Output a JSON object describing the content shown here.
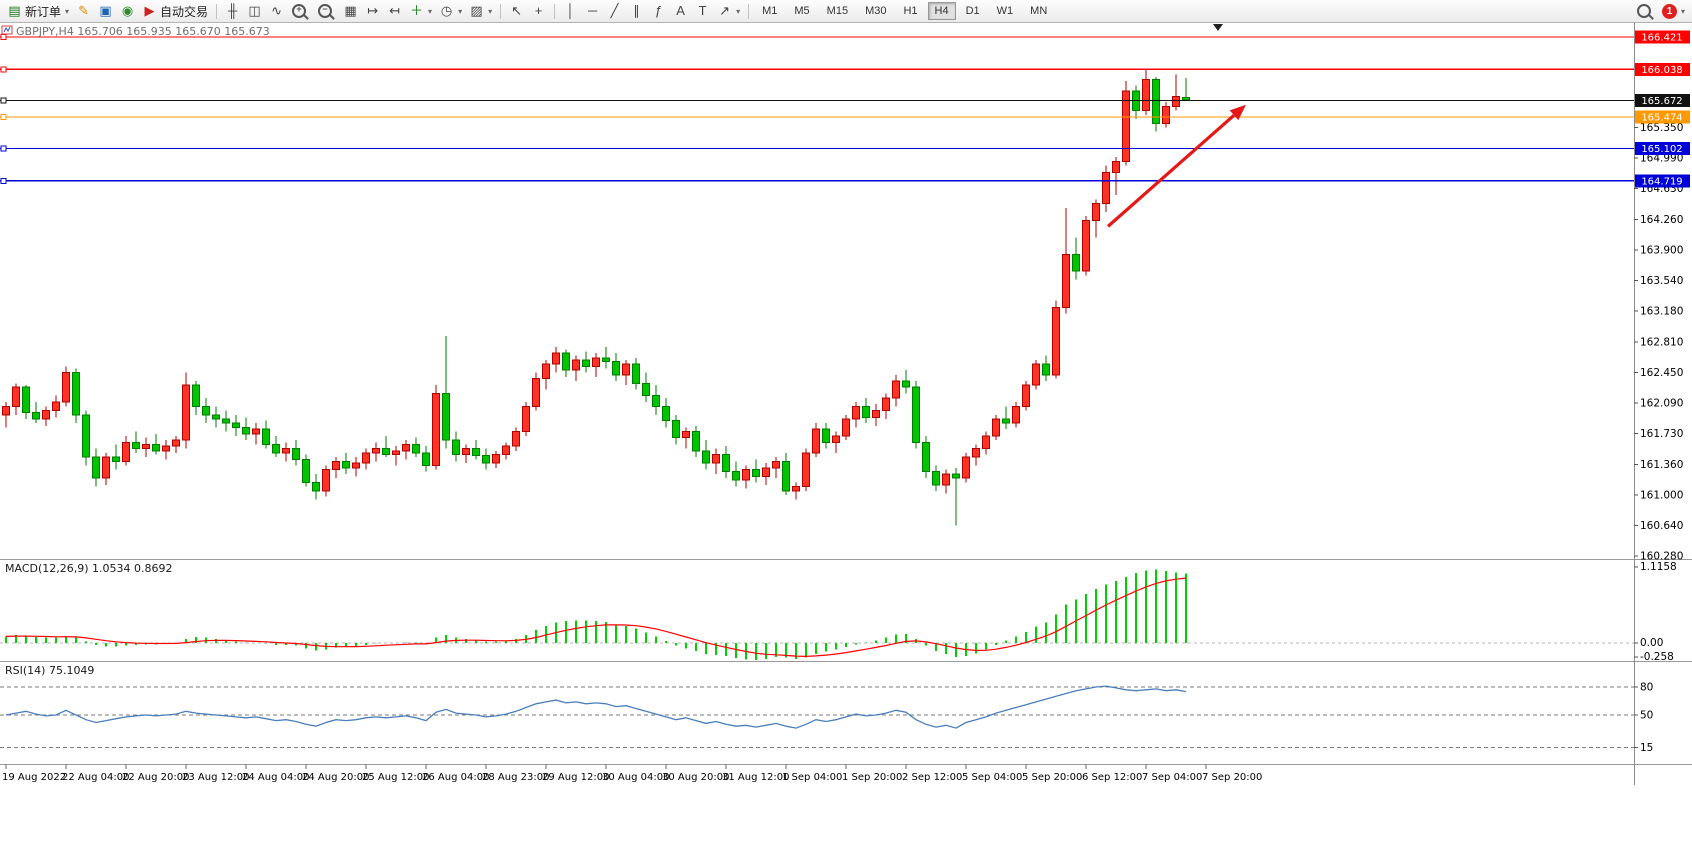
{
  "toolbar": {
    "main_buttons": [
      {
        "name": "new-order",
        "glyph": "▤",
        "glyph_color": "#1a7a1a",
        "label": "新订单",
        "dropdown": "▾"
      },
      {
        "name": "metaeditor",
        "glyph": "✎",
        "glyph_color": "#d89000"
      },
      {
        "name": "terminal",
        "glyph": "▣",
        "glyph_color": "#1e64b4"
      },
      {
        "name": "alerts",
        "glyph": "◉",
        "glyph_color": "#2e8b2e"
      },
      {
        "name": "autotrading",
        "glyph": "▶",
        "glyph_color": "#cc2222",
        "label": "自动交易"
      }
    ],
    "chart_buttons": [
      {
        "name": "bar-chart-mode",
        "glyph": "╫"
      },
      {
        "name": "candlestick-mode",
        "glyph": "◫"
      },
      {
        "name": "line-chart-mode",
        "glyph": "∿"
      },
      {
        "name": "zoom-in",
        "glyph": "+",
        "magnifier": true
      },
      {
        "name": "zoom-out",
        "glyph": "−",
        "magnifier": true
      },
      {
        "name": "tile-windows",
        "glyph": "▦"
      },
      {
        "name": "auto-scroll",
        "glyph": "↦"
      },
      {
        "name": "chart-shift",
        "glyph": "↤"
      },
      {
        "name": "indicators-list",
        "glyph": "＋",
        "glyph_color": "#1a7a1a",
        "dropdown": "▾"
      },
      {
        "name": "periods-list",
        "glyph": "◷",
        "dropdown": "▾"
      },
      {
        "name": "templates",
        "glyph": "▨",
        "dropdown": "▾"
      }
    ],
    "tool_buttons": [
      {
        "name": "cursor",
        "glyph": "↖"
      },
      {
        "name": "crosshair",
        "glyph": "+"
      }
    ],
    "draw_buttons": [
      {
        "name": "vertical-line-tool",
        "glyph": "│"
      },
      {
        "name": "horizontal-line-tool",
        "glyph": "─"
      },
      {
        "name": "trendline-tool",
        "glyph": "╱"
      },
      {
        "name": "channel-tool",
        "glyph": "∥"
      },
      {
        "name": "fibonacci-tool",
        "glyph": "ƒ"
      },
      {
        "name": "text-tool",
        "glyph": "A"
      },
      {
        "name": "label-tool",
        "glyph": "T"
      },
      {
        "name": "arrows-tool",
        "glyph": "↗",
        "dropdown": "▾"
      }
    ],
    "timeframes": {
      "items": [
        "M1",
        "M5",
        "M15",
        "M30",
        "H1",
        "H4",
        "D1",
        "W1",
        "MN"
      ],
      "active": "H4"
    },
    "right_buttons": [
      {
        "name": "search",
        "magnifier": true
      },
      {
        "name": "notifications",
        "badge": "1",
        "dropdown": "▾"
      }
    ]
  },
  "chart": {
    "title": "GBPJPY,H4 165.706 165.935 165.670 165.673",
    "macd_label": "MACD(12,26,9) 1.0534 0.8692",
    "rsi_label": "RSI(14) 75.1049",
    "price_axis_ticks": [
      "165.350",
      "164.990",
      "164.630",
      "164.260",
      "163.900",
      "163.540",
      "163.180",
      "162.810",
      "162.450",
      "162.090",
      "161.730",
      "161.360",
      "161.000",
      "160.640",
      "160.280"
    ],
    "hlines": [
      {
        "price": 166.421,
        "label": "166.421",
        "color": "#ff0000"
      },
      {
        "price": 166.038,
        "label": "166.038",
        "color": "#ff0000"
      },
      {
        "price": 165.672,
        "label": "165.672",
        "color": "#111111"
      },
      {
        "price": 165.474,
        "label": "165.474",
        "color": "#ff9900"
      },
      {
        "price": 165.102,
        "label": "165.102",
        "color": "#0000d8"
      },
      {
        "price": 164.719,
        "label": "164.719",
        "color": "#0000d8"
      }
    ],
    "macd_axis": {
      "max_label": "1.1158",
      "zero_label": "0.00",
      "min_label": "-0.258"
    },
    "rsi_levels": [
      {
        "value": 80,
        "label": "80"
      },
      {
        "value": 50,
        "label": "50"
      },
      {
        "value": 15,
        "label": "15"
      }
    ],
    "arrow": {
      "from_bar": 110.2,
      "from_price": 164.18,
      "to_bar": 124,
      "to_price": 165.62,
      "color": "#e51717"
    },
    "colors": {
      "up_fill": "#ff3226",
      "up_border": "#ae0000",
      "down_fill": "#00c400",
      "down_border": "#007d00",
      "macd_hist": "#00d000",
      "macd_signal": "#ff0000",
      "rsi_line": "#4a7ebb"
    }
  },
  "chart_data": {
    "type": "candlestick",
    "symbol": "GBPJPY",
    "timeframe": "H4",
    "ohlc_current": {
      "open": 165.706,
      "high": 165.935,
      "low": 165.67,
      "close": 165.673
    },
    "ylim": [
      160.255,
      166.587
    ],
    "label_every_bars": 6,
    "time_labels": [
      "19 Aug 2022",
      "22 Aug 04:00",
      "22 Aug 20:00",
      "23 Aug 12:00",
      "24 Aug 04:00",
      "24 Aug 20:00",
      "25 Aug 12:00",
      "26 Aug 04:00",
      "28 Aug 23:00",
      "29 Aug 12:00",
      "30 Aug 04:00",
      "30 Aug 20:00",
      "31 Aug 12:00",
      "1 Sep 04:00",
      "1 Sep 20:00",
      "2 Sep 12:00",
      "5 Sep 04:00",
      "5 Sep 20:00",
      "6 Sep 12:00",
      "7 Sep 04:00",
      "7 Sep 20:00"
    ],
    "candles": [
      [
        161.95,
        162.1,
        161.8,
        162.05
      ],
      [
        162.05,
        162.32,
        161.95,
        162.28
      ],
      [
        162.28,
        162.3,
        161.9,
        161.98
      ],
      [
        161.98,
        162.1,
        161.85,
        161.9
      ],
      [
        161.9,
        162.05,
        161.82,
        162.0
      ],
      [
        162.0,
        162.18,
        161.92,
        162.1
      ],
      [
        162.1,
        162.52,
        162.05,
        162.45
      ],
      [
        162.45,
        162.5,
        161.85,
        161.95
      ],
      [
        161.95,
        162.0,
        161.35,
        161.45
      ],
      [
        161.45,
        161.55,
        161.1,
        161.2
      ],
      [
        161.2,
        161.5,
        161.12,
        161.45
      ],
      [
        161.45,
        161.6,
        161.3,
        161.4
      ],
      [
        161.4,
        161.7,
        161.35,
        161.62
      ],
      [
        161.62,
        161.75,
        161.5,
        161.55
      ],
      [
        161.55,
        161.68,
        161.45,
        161.6
      ],
      [
        161.6,
        161.72,
        161.48,
        161.52
      ],
      [
        161.52,
        161.65,
        161.42,
        161.58
      ],
      [
        161.58,
        161.7,
        161.5,
        161.65
      ],
      [
        161.65,
        162.45,
        161.55,
        162.3
      ],
      [
        162.3,
        162.35,
        161.95,
        162.05
      ],
      [
        162.05,
        162.15,
        161.85,
        161.95
      ],
      [
        161.95,
        162.05,
        161.8,
        161.9
      ],
      [
        161.9,
        162.0,
        161.75,
        161.85
      ],
      [
        161.85,
        161.95,
        161.7,
        161.8
      ],
      [
        161.8,
        161.92,
        161.65,
        161.72
      ],
      [
        161.72,
        161.85,
        161.6,
        161.78
      ],
      [
        161.78,
        161.88,
        161.55,
        161.6
      ],
      [
        161.6,
        161.7,
        161.45,
        161.5
      ],
      [
        161.5,
        161.62,
        161.4,
        161.55
      ],
      [
        161.55,
        161.65,
        161.35,
        161.42
      ],
      [
        161.42,
        161.48,
        161.1,
        161.15
      ],
      [
        161.15,
        161.25,
        160.95,
        161.05
      ],
      [
        161.05,
        161.35,
        160.98,
        161.3
      ],
      [
        161.3,
        161.45,
        161.2,
        161.4
      ],
      [
        161.4,
        161.5,
        161.25,
        161.32
      ],
      [
        161.32,
        161.45,
        161.22,
        161.38
      ],
      [
        161.38,
        161.55,
        161.3,
        161.5
      ],
      [
        161.5,
        161.62,
        161.4,
        161.55
      ],
      [
        161.55,
        161.7,
        161.45,
        161.48
      ],
      [
        161.48,
        161.58,
        161.35,
        161.52
      ],
      [
        161.52,
        161.65,
        161.42,
        161.6
      ],
      [
        161.6,
        161.68,
        161.45,
        161.5
      ],
      [
        161.5,
        161.58,
        161.28,
        161.35
      ],
      [
        161.35,
        162.3,
        161.3,
        162.2
      ],
      [
        162.2,
        162.88,
        161.55,
        161.65
      ],
      [
        161.65,
        161.75,
        161.4,
        161.48
      ],
      [
        161.48,
        161.6,
        161.38,
        161.55
      ],
      [
        161.55,
        161.65,
        161.42,
        161.47
      ],
      [
        161.47,
        161.55,
        161.3,
        161.38
      ],
      [
        161.38,
        161.52,
        161.32,
        161.48
      ],
      [
        161.48,
        161.62,
        161.42,
        161.58
      ],
      [
        161.58,
        161.8,
        161.52,
        161.75
      ],
      [
        161.75,
        162.1,
        161.7,
        162.05
      ],
      [
        162.05,
        162.45,
        162.0,
        162.38
      ],
      [
        162.38,
        162.6,
        162.25,
        162.55
      ],
      [
        162.55,
        162.75,
        162.45,
        162.68
      ],
      [
        162.68,
        162.72,
        162.4,
        162.48
      ],
      [
        162.48,
        162.65,
        162.35,
        162.6
      ],
      [
        162.6,
        162.7,
        162.45,
        162.52
      ],
      [
        162.52,
        162.68,
        162.4,
        162.62
      ],
      [
        162.62,
        162.75,
        162.5,
        162.58
      ],
      [
        162.58,
        162.68,
        162.35,
        162.42
      ],
      [
        162.42,
        162.6,
        162.3,
        162.55
      ],
      [
        162.55,
        162.62,
        162.25,
        162.32
      ],
      [
        162.32,
        162.45,
        162.1,
        162.18
      ],
      [
        162.18,
        162.3,
        161.95,
        162.05
      ],
      [
        162.05,
        162.15,
        161.8,
        161.88
      ],
      [
        161.88,
        161.95,
        161.6,
        161.68
      ],
      [
        161.68,
        161.8,
        161.55,
        161.75
      ],
      [
        161.75,
        161.82,
        161.45,
        161.52
      ],
      [
        161.52,
        161.65,
        161.3,
        161.38
      ],
      [
        161.38,
        161.55,
        161.25,
        161.48
      ],
      [
        161.48,
        161.58,
        161.2,
        161.28
      ],
      [
        161.28,
        161.4,
        161.1,
        161.18
      ],
      [
        161.18,
        161.35,
        161.08,
        161.3
      ],
      [
        161.3,
        161.42,
        161.15,
        161.22
      ],
      [
        161.22,
        161.38,
        161.12,
        161.32
      ],
      [
        161.32,
        161.45,
        161.2,
        161.4
      ],
      [
        161.4,
        161.5,
        161.0,
        161.05
      ],
      [
        161.05,
        161.15,
        160.95,
        161.1
      ],
      [
        161.1,
        161.55,
        161.05,
        161.5
      ],
      [
        161.5,
        161.85,
        161.45,
        161.78
      ],
      [
        161.78,
        161.85,
        161.55,
        161.62
      ],
      [
        161.62,
        161.75,
        161.5,
        161.7
      ],
      [
        161.7,
        161.95,
        161.65,
        161.9
      ],
      [
        161.9,
        162.1,
        161.8,
        162.05
      ],
      [
        162.05,
        162.15,
        161.85,
        161.92
      ],
      [
        161.92,
        162.08,
        161.82,
        162.0
      ],
      [
        162.0,
        162.2,
        161.9,
        162.15
      ],
      [
        162.15,
        162.42,
        162.05,
        162.35
      ],
      [
        162.35,
        162.48,
        162.2,
        162.28
      ],
      [
        162.28,
        162.35,
        161.55,
        161.62
      ],
      [
        161.62,
        161.7,
        161.2,
        161.28
      ],
      [
        161.28,
        161.35,
        161.05,
        161.12
      ],
      [
        161.12,
        161.3,
        161.02,
        161.25
      ],
      [
        161.25,
        161.32,
        160.64,
        161.2
      ],
      [
        161.2,
        161.5,
        161.15,
        161.45
      ],
      [
        161.45,
        161.6,
        161.35,
        161.55
      ],
      [
        161.55,
        161.75,
        161.48,
        161.7
      ],
      [
        161.7,
        161.95,
        161.65,
        161.9
      ],
      [
        161.9,
        162.05,
        161.78,
        161.85
      ],
      [
        161.85,
        162.1,
        161.8,
        162.05
      ],
      [
        162.05,
        162.35,
        162.0,
        162.3
      ],
      [
        162.3,
        162.6,
        162.25,
        162.55
      ],
      [
        162.55,
        162.65,
        162.35,
        162.42
      ],
      [
        162.42,
        163.3,
        162.38,
        163.22
      ],
      [
        163.22,
        164.4,
        163.15,
        163.85
      ],
      [
        163.85,
        164.05,
        163.55,
        163.65
      ],
      [
        163.65,
        164.3,
        163.6,
        164.25
      ],
      [
        164.25,
        164.5,
        164.05,
        164.45
      ],
      [
        164.45,
        164.9,
        164.35,
        164.82
      ],
      [
        164.82,
        165.0,
        164.55,
        164.95
      ],
      [
        164.95,
        165.9,
        164.9,
        165.78
      ],
      [
        165.78,
        165.85,
        165.45,
        165.55
      ],
      [
        165.55,
        166.04,
        165.5,
        165.92
      ],
      [
        165.92,
        165.95,
        165.3,
        165.4
      ],
      [
        165.4,
        165.65,
        165.35,
        165.6
      ],
      [
        165.6,
        165.98,
        165.55,
        165.72
      ],
      [
        165.706,
        165.935,
        165.67,
        165.673
      ]
    ],
    "macd": {
      "params": "12,26,9",
      "current": 1.0534,
      "signal_current": 0.8692,
      "max": 1.1158,
      "min": -0.258,
      "signal_period": 9,
      "values": [
        0.1,
        0.12,
        0.11,
        0.09,
        0.08,
        0.08,
        0.1,
        0.08,
        0.02,
        -0.03,
        -0.05,
        -0.05,
        -0.04,
        -0.03,
        -0.02,
        -0.02,
        -0.01,
        0.0,
        0.06,
        0.09,
        0.08,
        0.06,
        0.04,
        0.02,
        0.01,
        0.0,
        -0.01,
        -0.03,
        -0.03,
        -0.04,
        -0.08,
        -0.11,
        -0.1,
        -0.07,
        -0.06,
        -0.05,
        -0.03,
        -0.01,
        0.0,
        0.0,
        0.01,
        0.01,
        -0.01,
        0.08,
        0.12,
        0.08,
        0.06,
        0.04,
        0.02,
        0.02,
        0.03,
        0.06,
        0.12,
        0.2,
        0.26,
        0.31,
        0.33,
        0.34,
        0.34,
        0.33,
        0.32,
        0.28,
        0.26,
        0.22,
        0.16,
        0.1,
        0.03,
        -0.04,
        -0.08,
        -0.12,
        -0.17,
        -0.18,
        -0.2,
        -0.23,
        -0.25,
        -0.2581,
        -0.24,
        -0.21,
        -0.22,
        -0.24,
        -0.22,
        -0.17,
        -0.13,
        -0.1,
        -0.06,
        -0.02,
        0.01,
        0.04,
        0.08,
        0.13,
        0.14,
        0.06,
        -0.04,
        -0.12,
        -0.17,
        -0.21,
        -0.2,
        -0.16,
        -0.1,
        -0.03,
        0.04,
        0.1,
        0.17,
        0.25,
        0.31,
        0.43,
        0.58,
        0.66,
        0.74,
        0.82,
        0.89,
        0.94,
        1.0,
        1.06,
        1.1,
        1.1158,
        1.09,
        1.07,
        1.0534
      ]
    },
    "rsi": {
      "period": 14,
      "current": 75.1049,
      "values": [
        50,
        52,
        54,
        51,
        49,
        50,
        55,
        50,
        45,
        42,
        44,
        46,
        48,
        49,
        50,
        49,
        50,
        51,
        54,
        52,
        51,
        50,
        49,
        48,
        47,
        48,
        46,
        44,
        45,
        43,
        40,
        38,
        42,
        45,
        44,
        45,
        47,
        48,
        47,
        48,
        49,
        47,
        44,
        53,
        56,
        52,
        51,
        50,
        48,
        49,
        51,
        54,
        58,
        62,
        64,
        66,
        63,
        64,
        62,
        63,
        62,
        59,
        60,
        57,
        54,
        51,
        48,
        45,
        47,
        44,
        41,
        43,
        40,
        38,
        39,
        37,
        39,
        41,
        38,
        36,
        40,
        45,
        43,
        45,
        48,
        51,
        49,
        50,
        52,
        55,
        53,
        45,
        40,
        37,
        39,
        36,
        42,
        45,
        48,
        52,
        55,
        58,
        61,
        64,
        67,
        70,
        73,
        76,
        78,
        80,
        81,
        79,
        77,
        76,
        77,
        78,
        76,
        77,
        75.1
      ]
    }
  }
}
